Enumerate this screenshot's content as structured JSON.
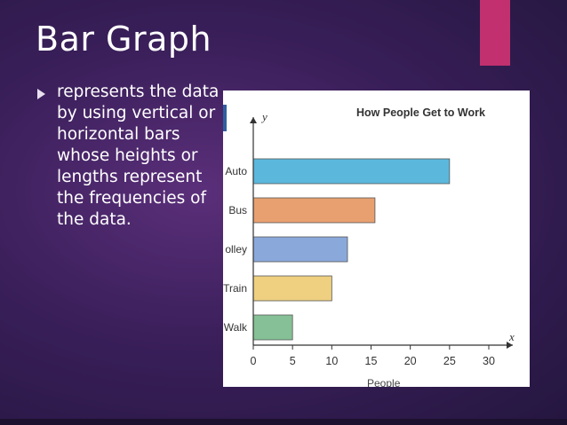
{
  "slide": {
    "title": "Bar Graph",
    "bullet": "represents the data by using vertical or horizontal bars whose heights or lengths represent the frequencies of the data."
  },
  "colors": {
    "accent": "#c2306f",
    "bars": [
      "#5bb8dc",
      "#e8a070",
      "#8aa8da",
      "#eed080",
      "#86c096"
    ]
  },
  "chart_data": {
    "type": "bar",
    "orientation": "horizontal",
    "title": "How People Get to Work",
    "xlabel": "People",
    "x_axis_letter": "x",
    "y_axis_letter": "y",
    "categories": [
      "Auto",
      "Bus",
      "olley",
      "Train",
      "Walk"
    ],
    "values": [
      25,
      15.5,
      12,
      10,
      5
    ],
    "xlim": [
      0,
      30
    ],
    "xticks": [
      "0",
      "5",
      "10",
      "15",
      "20",
      "25",
      "30"
    ],
    "grid": false
  }
}
